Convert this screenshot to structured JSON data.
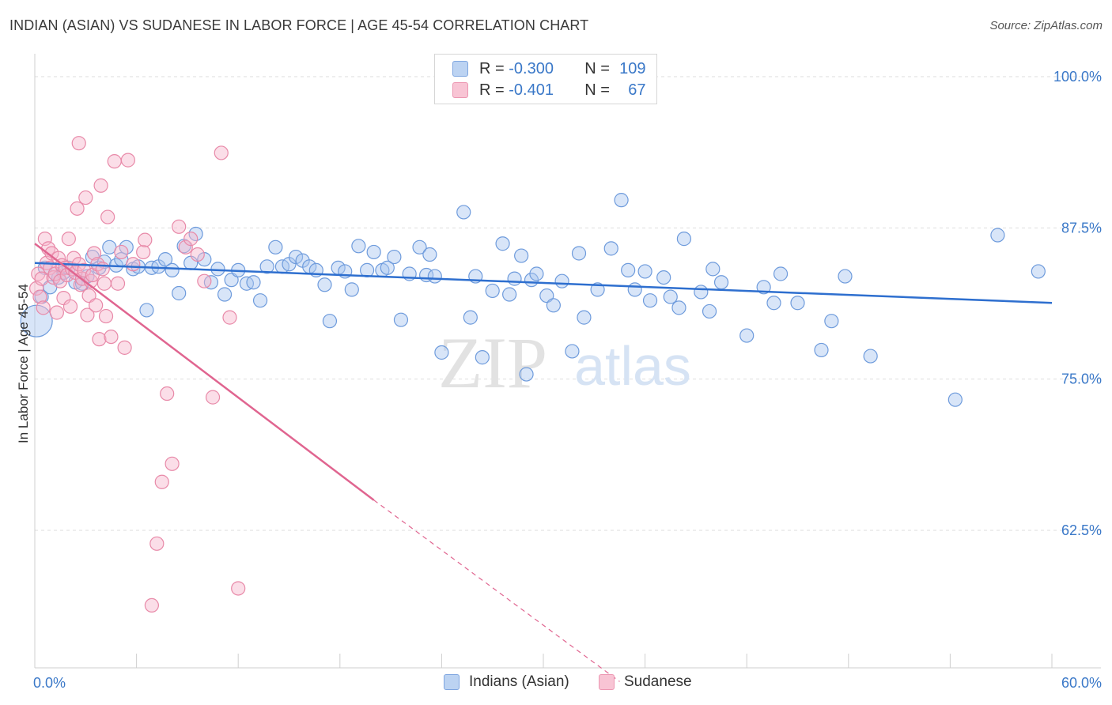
{
  "title": "INDIAN (ASIAN) VS SUDANESE IN LABOR FORCE | AGE 45-54 CORRELATION CHART",
  "source": "Source: ZipAtlas.com",
  "legend_top": {
    "rows": [
      {
        "r_label": "R =",
        "r_value": "-0.300",
        "n_label": "N =",
        "n_value": "109"
      },
      {
        "r_label": "R =",
        "r_value": "-0.401",
        "n_label": "N =",
        "n_value": "67"
      }
    ]
  },
  "legend_bottom": {
    "items": [
      {
        "label": "Indians (Asian)"
      },
      {
        "label": "Sudanese"
      }
    ]
  },
  "watermark": {
    "zip": "ZIP",
    "atlas": "atlas"
  },
  "colors": {
    "blue_fill": "#a9c6ef",
    "blue_stroke": "#6e9bdc",
    "blue_line": "#2e6fcf",
    "pink_fill": "#f7b6cb",
    "pink_stroke": "#e889a8",
    "pink_line": "#e06590",
    "axis_text_blue": "#3a78c8",
    "grid": "#dedede"
  },
  "chart_data": {
    "type": "scatter",
    "title": "INDIAN (ASIAN) VS SUDANESE IN LABOR FORCE | AGE 45-54 CORRELATION CHART",
    "xlabel": "",
    "ylabel": "In Labor Force | Age 45-54",
    "xlim": [
      0,
      60
    ],
    "ylim": [
      50,
      102
    ],
    "x_tick_labels": [
      "0.0%",
      "60.0%"
    ],
    "y_ticks": [
      62.5,
      75.0,
      87.5,
      100.0
    ],
    "y_tick_labels": [
      "62.5%",
      "75.0%",
      "87.5%",
      "100.0%"
    ],
    "series": [
      {
        "name": "Indians (Asian)",
        "r": -0.3,
        "n": 109,
        "trend": {
          "x": [
            0,
            60
          ],
          "y": [
            84.6,
            81.3
          ]
        },
        "points": [
          [
            0.1,
            79.8
          ],
          [
            0.4,
            81.8
          ],
          [
            0.6,
            84.2
          ],
          [
            0.9,
            82.6
          ],
          [
            1.2,
            83.7
          ],
          [
            1.4,
            83.4
          ],
          [
            1.7,
            83.8
          ],
          [
            2.0,
            84.2
          ],
          [
            2.4,
            83.0
          ],
          [
            2.8,
            82.9
          ],
          [
            3.1,
            83.5
          ],
          [
            3.4,
            85.1
          ],
          [
            3.8,
            84.2
          ],
          [
            4.1,
            84.7
          ],
          [
            4.4,
            85.9
          ],
          [
            4.8,
            84.4
          ],
          [
            5.1,
            84.9
          ],
          [
            5.4,
            85.9
          ],
          [
            5.8,
            84.1
          ],
          [
            6.1,
            84.3
          ],
          [
            6.6,
            80.7
          ],
          [
            6.9,
            84.2
          ],
          [
            7.3,
            84.3
          ],
          [
            7.7,
            84.9
          ],
          [
            8.1,
            84.0
          ],
          [
            8.5,
            82.1
          ],
          [
            8.8,
            86.0
          ],
          [
            9.2,
            84.6
          ],
          [
            9.5,
            87.0
          ],
          [
            10.0,
            84.9
          ],
          [
            10.4,
            83.0
          ],
          [
            10.8,
            84.1
          ],
          [
            11.2,
            82.0
          ],
          [
            11.6,
            83.2
          ],
          [
            12.0,
            84.0
          ],
          [
            12.5,
            82.9
          ],
          [
            12.9,
            83.0
          ],
          [
            13.3,
            81.5
          ],
          [
            13.7,
            84.3
          ],
          [
            14.2,
            85.9
          ],
          [
            14.6,
            84.3
          ],
          [
            15.0,
            84.5
          ],
          [
            15.4,
            85.1
          ],
          [
            15.8,
            84.8
          ],
          [
            16.2,
            84.3
          ],
          [
            16.6,
            84.0
          ],
          [
            17.1,
            82.8
          ],
          [
            17.4,
            79.8
          ],
          [
            17.9,
            84.2
          ],
          [
            18.3,
            83.9
          ],
          [
            18.7,
            82.4
          ],
          [
            19.1,
            86.0
          ],
          [
            19.6,
            84.0
          ],
          [
            20.0,
            85.5
          ],
          [
            20.5,
            84.0
          ],
          [
            20.8,
            84.2
          ],
          [
            21.2,
            85.1
          ],
          [
            21.6,
            79.9
          ],
          [
            22.1,
            83.7
          ],
          [
            22.7,
            85.9
          ],
          [
            23.1,
            83.6
          ],
          [
            23.3,
            85.3
          ],
          [
            23.6,
            83.5
          ],
          [
            24.0,
            77.2
          ],
          [
            25.3,
            88.8
          ],
          [
            25.7,
            80.1
          ],
          [
            26.0,
            83.5
          ],
          [
            26.4,
            76.8
          ],
          [
            27.0,
            82.3
          ],
          [
            27.6,
            86.2
          ],
          [
            28.0,
            82.0
          ],
          [
            28.3,
            83.3
          ],
          [
            28.7,
            85.2
          ],
          [
            29.0,
            75.4
          ],
          [
            29.3,
            83.2
          ],
          [
            29.6,
            83.7
          ],
          [
            30.2,
            81.9
          ],
          [
            30.6,
            81.1
          ],
          [
            31.1,
            83.1
          ],
          [
            31.7,
            77.3
          ],
          [
            32.1,
            85.4
          ],
          [
            32.4,
            80.1
          ],
          [
            33.2,
            82.4
          ],
          [
            34.0,
            85.8
          ],
          [
            34.6,
            89.8
          ],
          [
            35.0,
            84.0
          ],
          [
            35.4,
            82.4
          ],
          [
            36.0,
            83.9
          ],
          [
            36.3,
            81.5
          ],
          [
            37.1,
            83.4
          ],
          [
            37.5,
            81.8
          ],
          [
            38.0,
            80.9
          ],
          [
            38.3,
            86.6
          ],
          [
            39.3,
            82.2
          ],
          [
            39.8,
            80.6
          ],
          [
            40.0,
            84.1
          ],
          [
            40.5,
            83.0
          ],
          [
            42.0,
            78.6
          ],
          [
            43.0,
            82.6
          ],
          [
            43.6,
            81.3
          ],
          [
            44.0,
            83.7
          ],
          [
            45.0,
            81.3
          ],
          [
            46.4,
            77.4
          ],
          [
            47.0,
            79.8
          ],
          [
            47.8,
            83.5
          ],
          [
            49.3,
            76.9
          ],
          [
            54.3,
            73.3
          ],
          [
            56.8,
            86.9
          ],
          [
            59.2,
            83.9
          ]
        ]
      },
      {
        "name": "Sudanese",
        "r": -0.401,
        "n": 67,
        "trend": {
          "x": [
            0,
            20
          ],
          "y": [
            86.2,
            65.0
          ]
        },
        "trend_dashed": {
          "x": [
            20,
            34.5
          ],
          "y": [
            65.0,
            50.0
          ]
        },
        "points": [
          [
            0.1,
            82.5
          ],
          [
            0.2,
            83.7
          ],
          [
            0.3,
            81.8
          ],
          [
            0.4,
            83.3
          ],
          [
            0.5,
            80.9
          ],
          [
            0.6,
            86.6
          ],
          [
            0.7,
            84.6
          ],
          [
            0.8,
            85.8
          ],
          [
            0.9,
            84.2
          ],
          [
            1.0,
            85.4
          ],
          [
            1.1,
            83.4
          ],
          [
            1.2,
            83.7
          ],
          [
            1.3,
            80.5
          ],
          [
            1.4,
            85.0
          ],
          [
            1.5,
            83.1
          ],
          [
            1.6,
            84.4
          ],
          [
            1.7,
            81.7
          ],
          [
            1.8,
            84.2
          ],
          [
            1.9,
            83.6
          ],
          [
            2.0,
            86.6
          ],
          [
            2.1,
            81.0
          ],
          [
            2.2,
            84.1
          ],
          [
            2.3,
            85.0
          ],
          [
            2.4,
            83.8
          ],
          [
            2.5,
            89.1
          ],
          [
            2.6,
            84.5
          ],
          [
            2.7,
            82.8
          ],
          [
            2.8,
            83.3
          ],
          [
            2.9,
            84.0
          ],
          [
            3.0,
            90.0
          ],
          [
            3.1,
            80.3
          ],
          [
            3.2,
            81.9
          ],
          [
            3.3,
            83.1
          ],
          [
            3.4,
            83.6
          ],
          [
            3.5,
            85.4
          ],
          [
            3.6,
            81.1
          ],
          [
            3.7,
            84.5
          ],
          [
            3.8,
            78.3
          ],
          [
            3.9,
            91.0
          ],
          [
            4.0,
            84.1
          ],
          [
            4.1,
            82.9
          ],
          [
            4.2,
            80.2
          ],
          [
            4.3,
            88.4
          ],
          [
            4.5,
            78.5
          ],
          [
            4.7,
            93.0
          ],
          [
            4.9,
            82.9
          ],
          [
            5.1,
            85.5
          ],
          [
            5.3,
            77.6
          ],
          [
            5.5,
            93.1
          ],
          [
            5.8,
            84.5
          ],
          [
            2.6,
            94.5
          ],
          [
            6.4,
            85.5
          ],
          [
            6.5,
            86.5
          ],
          [
            6.9,
            56.3
          ],
          [
            7.2,
            61.4
          ],
          [
            7.5,
            66.5
          ],
          [
            7.8,
            73.8
          ],
          [
            8.1,
            68.0
          ],
          [
            8.5,
            87.6
          ],
          [
            8.9,
            85.9
          ],
          [
            9.2,
            86.6
          ],
          [
            9.6,
            85.3
          ],
          [
            10.0,
            83.1
          ],
          [
            10.5,
            73.5
          ],
          [
            11.0,
            93.7
          ],
          [
            11.5,
            80.1
          ],
          [
            12.0,
            57.7
          ]
        ]
      }
    ]
  }
}
